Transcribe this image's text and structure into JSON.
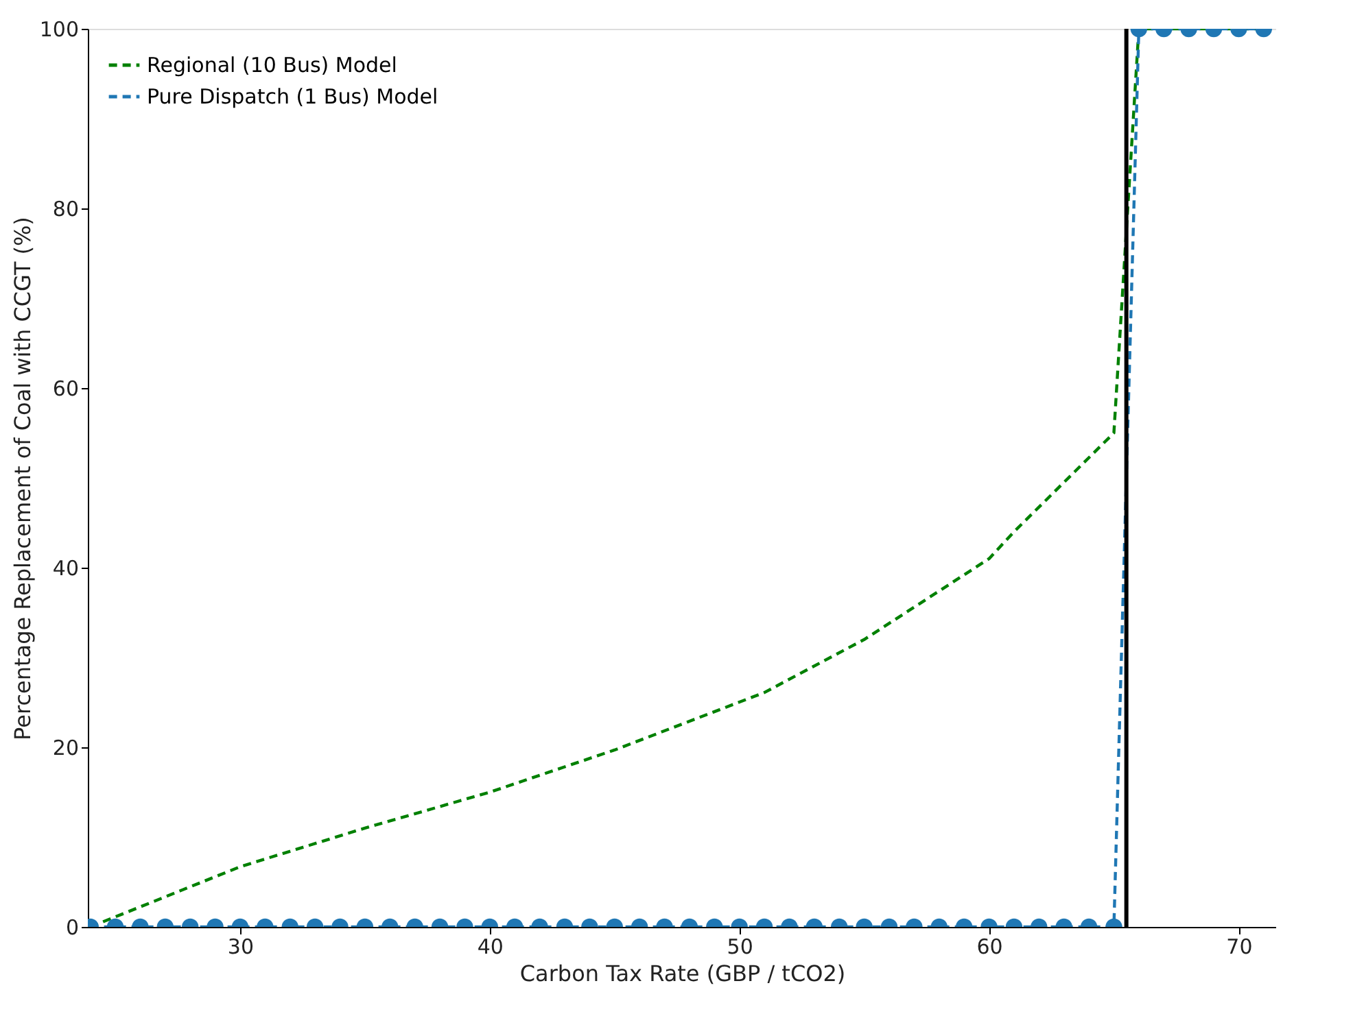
{
  "chart_data": {
    "type": "line",
    "xlabel": "Carbon Tax Rate (GBP / tCO2)",
    "ylabel": "Percentage Replacement of Coal with CCGT (%)",
    "xlim": [
      23.9,
      71.5
    ],
    "xticks": [
      30,
      40,
      50,
      60,
      70
    ],
    "ylim": [
      0,
      100
    ],
    "yticks": [
      0,
      20,
      40,
      60,
      80,
      100
    ],
    "grid": false,
    "legend": "top left",
    "series": [
      {
        "name": "Regional (10 Bus) Model",
        "color": "#008000",
        "line_style": "dashed",
        "marker": "none",
        "x": [
          24,
          30,
          35,
          40,
          45,
          51,
          55,
          60,
          61,
          65,
          66,
          71
        ],
        "values": [
          0,
          6.7,
          11,
          15,
          19.7,
          26.1,
          32,
          41,
          44,
          55,
          100,
          100
        ]
      },
      {
        "name": "Pure Dispatch (1 Bus) Model",
        "color": "#1f77b4",
        "line_style": "dashed",
        "marker": "circle",
        "x": [
          24,
          25,
          26,
          27,
          28,
          29,
          30,
          31,
          32,
          33,
          34,
          35,
          36,
          37,
          38,
          39,
          40,
          41,
          42,
          43,
          44,
          45,
          46,
          47,
          48,
          49,
          50,
          51,
          52,
          53,
          54,
          55,
          56,
          57,
          58,
          59,
          60,
          61,
          62,
          63,
          64,
          65,
          66,
          67,
          68,
          69,
          70,
          71
        ],
        "values": [
          0,
          0,
          0,
          0,
          0,
          0,
          0,
          0,
          0,
          0,
          0,
          0,
          0,
          0,
          0,
          0,
          0,
          0,
          0,
          0,
          0,
          0,
          0,
          0,
          0,
          0,
          0,
          0,
          0,
          0,
          0,
          0,
          0,
          0,
          0,
          0,
          0,
          0,
          0,
          0,
          0,
          0,
          100,
          100,
          100,
          100,
          100,
          100
        ]
      }
    ],
    "ref_lines": [
      {
        "axis": "x",
        "value": 65.5,
        "color": "#000000"
      }
    ]
  }
}
